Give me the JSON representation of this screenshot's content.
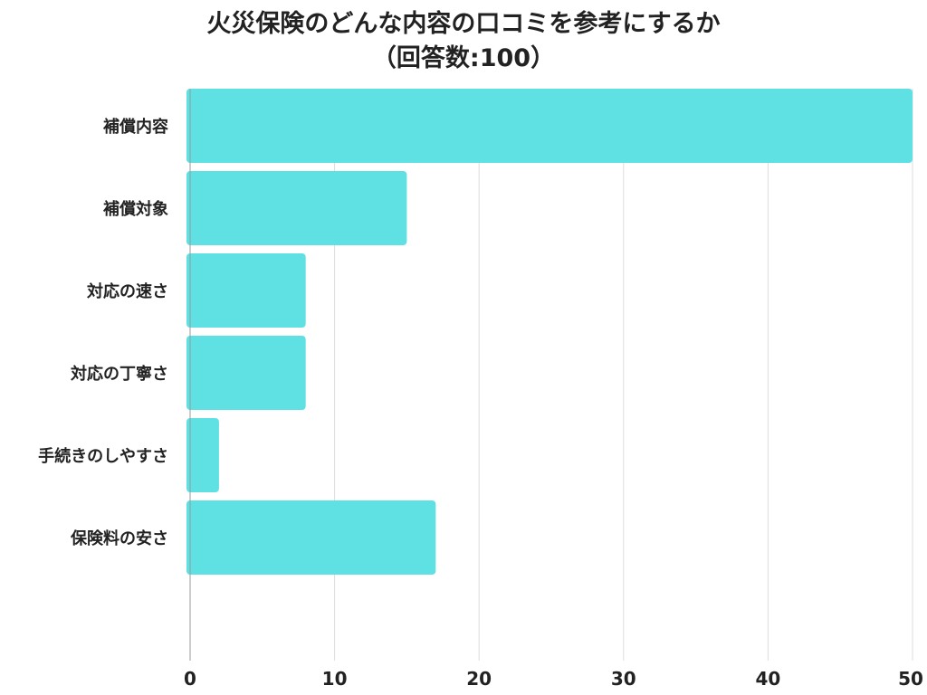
{
  "chart_data": {
    "type": "bar",
    "orientation": "horizontal",
    "title": "火災保険のどんな内容の口コミを参考にするか",
    "subtitle": "（回答数:100）",
    "categories": [
      "補償内容",
      "補償対象",
      "対応の速さ",
      "対応の丁寧さ",
      "手続きのしやすさ",
      "保険料の安さ"
    ],
    "values": [
      50,
      15,
      8,
      8,
      2,
      17
    ],
    "xlim": [
      0,
      50
    ],
    "xticks": [
      "0",
      "10",
      "20",
      "30",
      "40",
      "50"
    ],
    "grid": true,
    "legend": "none"
  },
  "colors": {
    "bar": "#5FE1E3",
    "grid": "#DDDDDD",
    "axis": "#999999",
    "text": "#222222"
  }
}
